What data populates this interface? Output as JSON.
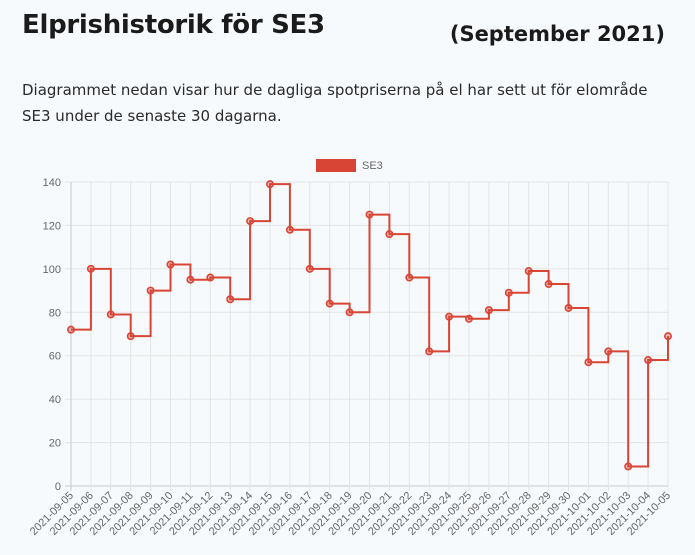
{
  "page": {
    "title": "Elprishistorik för SE3",
    "period": "(September 2021)",
    "description": "Diagrammet nedan visar hur de dagliga spotpriserna på el har sett ut för elområde SE3 under de senaste 30 dagarna."
  },
  "chart_data": {
    "type": "line",
    "stepped": true,
    "title": "",
    "xlabel": "",
    "ylabel": "",
    "ylim": [
      0,
      140
    ],
    "yticks": [
      0,
      20,
      40,
      60,
      80,
      100,
      120,
      140
    ],
    "grid": true,
    "legend_position": "top",
    "categories": [
      "2021-09-05",
      "2021-09-06",
      "2021-09-07",
      "2021-09-08",
      "2021-09-09",
      "2021-09-10",
      "2021-09-11",
      "2021-09-12",
      "2021-09-13",
      "2021-09-14",
      "2021-09-15",
      "2021-09-16",
      "2021-09-17",
      "2021-09-18",
      "2021-09-19",
      "2021-09-20",
      "2021-09-21",
      "2021-09-22",
      "2021-09-23",
      "2021-09-24",
      "2021-09-25",
      "2021-09-26",
      "2021-09-27",
      "2021-09-28",
      "2021-09-29",
      "2021-09-30",
      "2021-10-01",
      "2021-10-02",
      "2021-10-03",
      "2021-10-04",
      "2021-10-05"
    ],
    "series": [
      {
        "name": "SE3",
        "color": "#d94535",
        "values": [
          72,
          100,
          79,
          69,
          90,
          102,
          95,
          96,
          86,
          122,
          139,
          118,
          100,
          84,
          80,
          125,
          116,
          96,
          62,
          78,
          77,
          81,
          89,
          99,
          93,
          82,
          57,
          62,
          9,
          58,
          69
        ]
      }
    ]
  }
}
